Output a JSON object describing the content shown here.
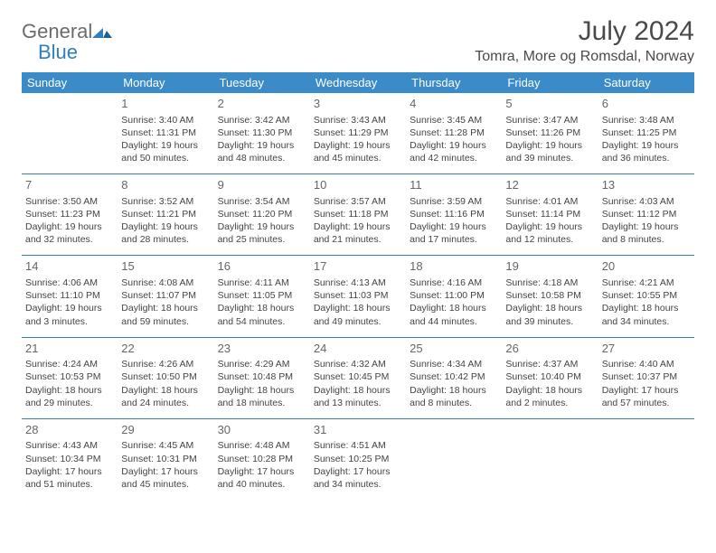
{
  "logo": {
    "general": "General",
    "blue": "Blue"
  },
  "title": "July 2024",
  "location": "Tomra, More og Romsdal, Norway",
  "weekdays": [
    "Sunday",
    "Monday",
    "Tuesday",
    "Wednesday",
    "Thursday",
    "Friday",
    "Saturday"
  ],
  "colors": {
    "header_bg": "#3b8bc8",
    "header_text": "#ffffff",
    "row_border": "#3b7bb0",
    "logo_gray": "#6b6b6b",
    "logo_blue": "#2f7fbf"
  },
  "weeks": [
    [
      {
        "n": "",
        "r": "",
        "s": "",
        "d": ""
      },
      {
        "n": "1",
        "r": "Sunrise: 3:40 AM",
        "s": "Sunset: 11:31 PM",
        "d": "Daylight: 19 hours and 50 minutes."
      },
      {
        "n": "2",
        "r": "Sunrise: 3:42 AM",
        "s": "Sunset: 11:30 PM",
        "d": "Daylight: 19 hours and 48 minutes."
      },
      {
        "n": "3",
        "r": "Sunrise: 3:43 AM",
        "s": "Sunset: 11:29 PM",
        "d": "Daylight: 19 hours and 45 minutes."
      },
      {
        "n": "4",
        "r": "Sunrise: 3:45 AM",
        "s": "Sunset: 11:28 PM",
        "d": "Daylight: 19 hours and 42 minutes."
      },
      {
        "n": "5",
        "r": "Sunrise: 3:47 AM",
        "s": "Sunset: 11:26 PM",
        "d": "Daylight: 19 hours and 39 minutes."
      },
      {
        "n": "6",
        "r": "Sunrise: 3:48 AM",
        "s": "Sunset: 11:25 PM",
        "d": "Daylight: 19 hours and 36 minutes."
      }
    ],
    [
      {
        "n": "7",
        "r": "Sunrise: 3:50 AM",
        "s": "Sunset: 11:23 PM",
        "d": "Daylight: 19 hours and 32 minutes."
      },
      {
        "n": "8",
        "r": "Sunrise: 3:52 AM",
        "s": "Sunset: 11:21 PM",
        "d": "Daylight: 19 hours and 28 minutes."
      },
      {
        "n": "9",
        "r": "Sunrise: 3:54 AM",
        "s": "Sunset: 11:20 PM",
        "d": "Daylight: 19 hours and 25 minutes."
      },
      {
        "n": "10",
        "r": "Sunrise: 3:57 AM",
        "s": "Sunset: 11:18 PM",
        "d": "Daylight: 19 hours and 21 minutes."
      },
      {
        "n": "11",
        "r": "Sunrise: 3:59 AM",
        "s": "Sunset: 11:16 PM",
        "d": "Daylight: 19 hours and 17 minutes."
      },
      {
        "n": "12",
        "r": "Sunrise: 4:01 AM",
        "s": "Sunset: 11:14 PM",
        "d": "Daylight: 19 hours and 12 minutes."
      },
      {
        "n": "13",
        "r": "Sunrise: 4:03 AM",
        "s": "Sunset: 11:12 PM",
        "d": "Daylight: 19 hours and 8 minutes."
      }
    ],
    [
      {
        "n": "14",
        "r": "Sunrise: 4:06 AM",
        "s": "Sunset: 11:10 PM",
        "d": "Daylight: 19 hours and 3 minutes."
      },
      {
        "n": "15",
        "r": "Sunrise: 4:08 AM",
        "s": "Sunset: 11:07 PM",
        "d": "Daylight: 18 hours and 59 minutes."
      },
      {
        "n": "16",
        "r": "Sunrise: 4:11 AM",
        "s": "Sunset: 11:05 PM",
        "d": "Daylight: 18 hours and 54 minutes."
      },
      {
        "n": "17",
        "r": "Sunrise: 4:13 AM",
        "s": "Sunset: 11:03 PM",
        "d": "Daylight: 18 hours and 49 minutes."
      },
      {
        "n": "18",
        "r": "Sunrise: 4:16 AM",
        "s": "Sunset: 11:00 PM",
        "d": "Daylight: 18 hours and 44 minutes."
      },
      {
        "n": "19",
        "r": "Sunrise: 4:18 AM",
        "s": "Sunset: 10:58 PM",
        "d": "Daylight: 18 hours and 39 minutes."
      },
      {
        "n": "20",
        "r": "Sunrise: 4:21 AM",
        "s": "Sunset: 10:55 PM",
        "d": "Daylight: 18 hours and 34 minutes."
      }
    ],
    [
      {
        "n": "21",
        "r": "Sunrise: 4:24 AM",
        "s": "Sunset: 10:53 PM",
        "d": "Daylight: 18 hours and 29 minutes."
      },
      {
        "n": "22",
        "r": "Sunrise: 4:26 AM",
        "s": "Sunset: 10:50 PM",
        "d": "Daylight: 18 hours and 24 minutes."
      },
      {
        "n": "23",
        "r": "Sunrise: 4:29 AM",
        "s": "Sunset: 10:48 PM",
        "d": "Daylight: 18 hours and 18 minutes."
      },
      {
        "n": "24",
        "r": "Sunrise: 4:32 AM",
        "s": "Sunset: 10:45 PM",
        "d": "Daylight: 18 hours and 13 minutes."
      },
      {
        "n": "25",
        "r": "Sunrise: 4:34 AM",
        "s": "Sunset: 10:42 PM",
        "d": "Daylight: 18 hours and 8 minutes."
      },
      {
        "n": "26",
        "r": "Sunrise: 4:37 AM",
        "s": "Sunset: 10:40 PM",
        "d": "Daylight: 18 hours and 2 minutes."
      },
      {
        "n": "27",
        "r": "Sunrise: 4:40 AM",
        "s": "Sunset: 10:37 PM",
        "d": "Daylight: 17 hours and 57 minutes."
      }
    ],
    [
      {
        "n": "28",
        "r": "Sunrise: 4:43 AM",
        "s": "Sunset: 10:34 PM",
        "d": "Daylight: 17 hours and 51 minutes."
      },
      {
        "n": "29",
        "r": "Sunrise: 4:45 AM",
        "s": "Sunset: 10:31 PM",
        "d": "Daylight: 17 hours and 45 minutes."
      },
      {
        "n": "30",
        "r": "Sunrise: 4:48 AM",
        "s": "Sunset: 10:28 PM",
        "d": "Daylight: 17 hours and 40 minutes."
      },
      {
        "n": "31",
        "r": "Sunrise: 4:51 AM",
        "s": "Sunset: 10:25 PM",
        "d": "Daylight: 17 hours and 34 minutes."
      },
      {
        "n": "",
        "r": "",
        "s": "",
        "d": ""
      },
      {
        "n": "",
        "r": "",
        "s": "",
        "d": ""
      },
      {
        "n": "",
        "r": "",
        "s": "",
        "d": ""
      }
    ]
  ]
}
